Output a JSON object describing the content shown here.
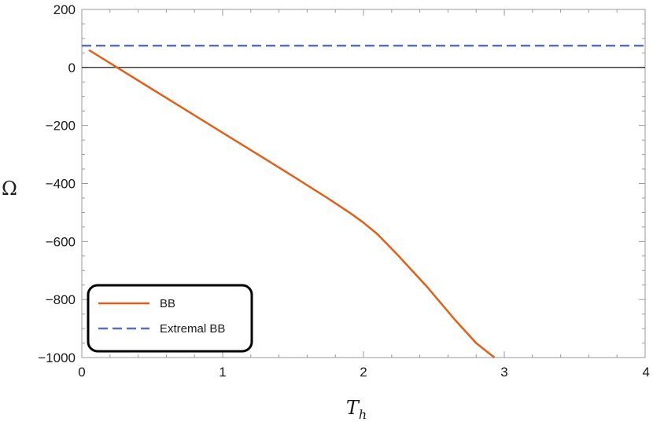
{
  "chart_data": {
    "type": "line",
    "xlabel": "T",
    "xlabel_sub": "h",
    "ylabel": "Ω",
    "xlim": [
      0,
      4
    ],
    "ylim": [
      -1000,
      200
    ],
    "x_ticks": [
      0,
      1,
      2,
      3,
      4
    ],
    "x_tick_labels": [
      "0",
      "1",
      "2",
      "3",
      "4"
    ],
    "y_ticks": [
      200,
      0,
      -200,
      -400,
      -600,
      -800,
      -1000
    ],
    "y_tick_labels": [
      "200",
      "0",
      "−200",
      "−400",
      "−600",
      "−800",
      "−1000"
    ],
    "reference_line": {
      "y": 0,
      "color": "#000000"
    },
    "legend": {
      "position": "bottom-left"
    },
    "series": [
      {
        "name": "BB",
        "style": "solid",
        "color": "#E0601A",
        "x": [
          0.05,
          0.25,
          0.5,
          0.75,
          1.0,
          1.25,
          1.5,
          1.75,
          1.9,
          2.0,
          2.1,
          2.25,
          2.45,
          2.65,
          2.8,
          2.93
        ],
        "y": [
          60,
          0,
          -75,
          -150,
          -225,
          -300,
          -375,
          -452,
          -500,
          -535,
          -575,
          -650,
          -755,
          -870,
          -950,
          -1000
        ]
      },
      {
        "name": "Extremal BB",
        "style": "dashed",
        "color": "#5B6CC4",
        "x": [
          0,
          4
        ],
        "y": [
          75,
          75
        ]
      }
    ]
  }
}
